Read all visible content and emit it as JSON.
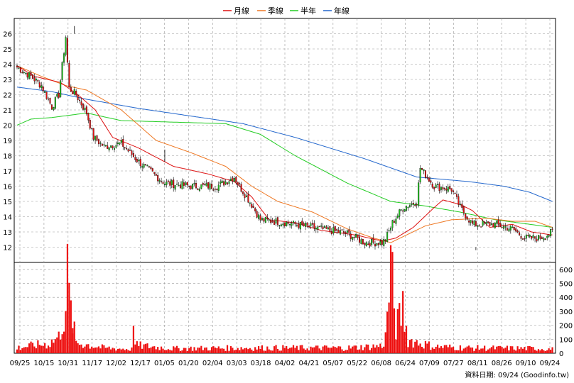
{
  "colors": {
    "up": "#1fbf1f",
    "down": "#e01010",
    "volume": "#ee1111",
    "ma_month": "#dd1111",
    "ma_quarter": "#ee7722",
    "ma_half": "#22cc22",
    "ma_year": "#2266cc",
    "grid": "#999999"
  },
  "legend": {
    "month": "月線",
    "quarter": "季線",
    "half": "半年",
    "year": "年線"
  },
  "source_label": "資料日期: 09/24  (Goodinfo.tw)",
  "chart_data": {
    "type": "candlestick",
    "price_axis": {
      "min": 11,
      "max": 27,
      "ticks": [
        12,
        13,
        14,
        15,
        16,
        17,
        18,
        19,
        20,
        21,
        22,
        23,
        24,
        25,
        26
      ]
    },
    "volume_axis": {
      "min": 0,
      "max": 650,
      "ticks": [
        0,
        100,
        200,
        300,
        400,
        500,
        600
      ]
    },
    "x_labels": [
      "09/25",
      "10/15",
      "10/31",
      "11/17",
      "12/02",
      "12/17",
      "01/05",
      "01/20",
      "02/04",
      "03/03",
      "03/18",
      "04/02",
      "04/21",
      "05/07",
      "05/22",
      "06/08",
      "06/24",
      "07/09",
      "07/27",
      "08/11",
      "08/26",
      "09/10",
      "09/24"
    ],
    "close_anchors": [
      [
        0,
        23.8
      ],
      [
        8,
        23.2
      ],
      [
        14,
        22.6
      ],
      [
        20,
        21.2
      ],
      [
        24,
        22.0
      ],
      [
        28,
        25.8
      ],
      [
        30,
        22.4
      ],
      [
        34,
        22.0
      ],
      [
        40,
        20.8
      ],
      [
        44,
        19.2
      ],
      [
        50,
        18.6
      ],
      [
        60,
        18.8
      ],
      [
        70,
        17.6
      ],
      [
        85,
        16.2
      ],
      [
        100,
        16.0
      ],
      [
        115,
        16.0
      ],
      [
        125,
        16.6
      ],
      [
        128,
        16.0
      ],
      [
        135,
        14.8
      ],
      [
        140,
        13.8
      ],
      [
        155,
        13.6
      ],
      [
        170,
        13.3
      ],
      [
        190,
        12.9
      ],
      [
        200,
        12.3
      ],
      [
        210,
        12.3
      ],
      [
        212,
        12.5
      ],
      [
        216,
        13.6
      ],
      [
        222,
        14.6
      ],
      [
        230,
        15.0
      ],
      [
        232,
        17.2
      ],
      [
        240,
        16.0
      ],
      [
        250,
        15.8
      ],
      [
        255,
        14.6
      ],
      [
        262,
        13.5
      ],
      [
        275,
        13.5
      ],
      [
        285,
        13.2
      ],
      [
        292,
        12.6
      ],
      [
        300,
        12.6
      ],
      [
        305,
        12.8
      ],
      [
        308,
        13.0
      ]
    ],
    "volume_anchors": [
      [
        0,
        40
      ],
      [
        10,
        60
      ],
      [
        18,
        70
      ],
      [
        24,
        120
      ],
      [
        28,
        350
      ],
      [
        29,
        560
      ],
      [
        31,
        300
      ],
      [
        34,
        80
      ],
      [
        50,
        40
      ],
      [
        66,
        30
      ],
      [
        67,
        370
      ],
      [
        68,
        60
      ],
      [
        90,
        35
      ],
      [
        130,
        40
      ],
      [
        190,
        40
      ],
      [
        210,
        55
      ],
      [
        212,
        120
      ],
      [
        215,
        640
      ],
      [
        218,
        200
      ],
      [
        220,
        250
      ],
      [
        222,
        350
      ],
      [
        225,
        100
      ],
      [
        240,
        50
      ],
      [
        260,
        40
      ],
      [
        300,
        35
      ],
      [
        308,
        30
      ]
    ],
    "spikes": [
      [
        33,
        26.5,
        26
      ],
      [
        85,
        18.4,
        17.6
      ],
      [
        264,
        11.8,
        12.0
      ]
    ],
    "volume_spikes": [
      [
        32,
        180
      ]
    ],
    "ma_year": [
      [
        0,
        22.5
      ],
      [
        20,
        22.2
      ],
      [
        40,
        21.7
      ],
      [
        70,
        21.1
      ],
      [
        100,
        20.6
      ],
      [
        130,
        20.1
      ],
      [
        160,
        19.2
      ],
      [
        200,
        17.8
      ],
      [
        230,
        16.6
      ],
      [
        260,
        16.3
      ],
      [
        280,
        16.0
      ],
      [
        295,
        15.6
      ],
      [
        308,
        15.0
      ]
    ],
    "ma_half": [
      [
        0,
        20.0
      ],
      [
        8,
        20.4
      ],
      [
        20,
        20.5
      ],
      [
        40,
        20.8
      ],
      [
        60,
        20.3
      ],
      [
        90,
        20.2
      ],
      [
        120,
        20.1
      ],
      [
        140,
        19.4
      ],
      [
        160,
        18.0
      ],
      [
        190,
        16.2
      ],
      [
        215,
        15.0
      ],
      [
        235,
        14.7
      ],
      [
        255,
        14.3
      ],
      [
        275,
        13.8
      ],
      [
        295,
        13.5
      ],
      [
        308,
        13.3
      ]
    ],
    "ma_quarter": [
      [
        0,
        23.9
      ],
      [
        14,
        23.2
      ],
      [
        28,
        22.6
      ],
      [
        40,
        22.3
      ],
      [
        60,
        21.0
      ],
      [
        80,
        19.0
      ],
      [
        100,
        18.2
      ],
      [
        120,
        17.3
      ],
      [
        135,
        16.0
      ],
      [
        150,
        15.0
      ],
      [
        170,
        14.3
      ],
      [
        190,
        13.2
      ],
      [
        205,
        12.6
      ],
      [
        215,
        12.3
      ],
      [
        235,
        13.4
      ],
      [
        250,
        13.8
      ],
      [
        270,
        13.9
      ],
      [
        285,
        13.7
      ],
      [
        298,
        13.7
      ],
      [
        308,
        13.3
      ]
    ],
    "ma_month": [
      [
        0,
        23.9
      ],
      [
        10,
        23.2
      ],
      [
        25,
        22.8
      ],
      [
        35,
        22.0
      ],
      [
        45,
        21.0
      ],
      [
        55,
        19.2
      ],
      [
        70,
        18.5
      ],
      [
        90,
        17.3
      ],
      [
        110,
        16.8
      ],
      [
        125,
        16.3
      ],
      [
        135,
        15.3
      ],
      [
        145,
        13.8
      ],
      [
        160,
        13.6
      ],
      [
        175,
        13.1
      ],
      [
        195,
        12.8
      ],
      [
        210,
        12.4
      ],
      [
        218,
        12.6
      ],
      [
        228,
        13.3
      ],
      [
        240,
        14.6
      ],
      [
        245,
        15.1
      ],
      [
        255,
        14.8
      ],
      [
        262,
        14.4
      ],
      [
        272,
        13.3
      ],
      [
        285,
        13.5
      ],
      [
        296,
        13.0
      ],
      [
        308,
        12.8
      ]
    ],
    "n_bars": 309
  }
}
